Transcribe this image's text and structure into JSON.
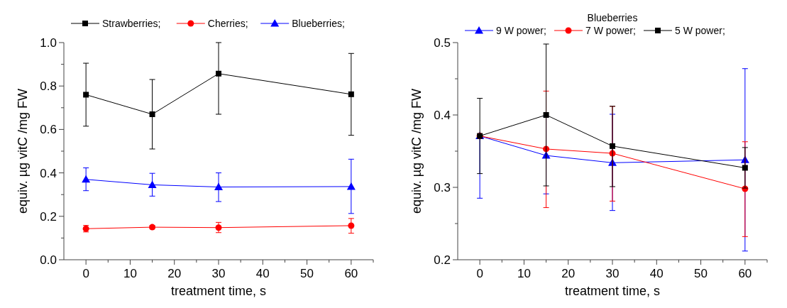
{
  "chart_data": [
    {
      "type": "line",
      "xlabel": "treatment time, s",
      "ylabel": "equiv. µg vitC /mg FW",
      "x": [
        0,
        15,
        30,
        60
      ],
      "xlim": [
        -5,
        65
      ],
      "xticks": [
        0,
        {
          "value": 5,
          "label": null
        },
        10,
        {
          "value": 15,
          "label": null
        },
        20,
        {
          "value": 25,
          "label": null
        },
        30,
        {
          "value": 35,
          "label": null
        },
        40,
        {
          "value": 45,
          "label": null
        },
        50,
        {
          "value": 55,
          "label": null
        },
        60,
        {
          "value": 65,
          "label": null
        }
      ],
      "ylim": [
        0,
        1.0
      ],
      "yticks": [
        {
          "value": 0,
          "label": "0.0"
        },
        {
          "value": 0.1,
          "label": null
        },
        0.2,
        {
          "value": 0.3,
          "label": null
        },
        0.4,
        {
          "value": 0.5,
          "label": null
        },
        0.6,
        {
          "value": 0.7,
          "label": null
        },
        0.8,
        {
          "value": 0.9,
          "label": null
        },
        {
          "value": 1.0,
          "label": "1.0"
        }
      ],
      "legend": "top",
      "grid": false,
      "line_style": "solid",
      "series": [
        {
          "name": "Strawberries;",
          "color": "#000000",
          "marker": "square",
          "values": [
            0.76,
            0.67,
            0.857,
            0.762
          ],
          "errors": [
            [
              0.615,
              0.905
            ],
            [
              0.51,
              0.83
            ],
            [
              0.67,
              1.0
            ],
            [
              0.573,
              0.95
            ]
          ]
        },
        {
          "name": "Cherries;",
          "color": "#ff0000",
          "marker": "circle",
          "values": [
            0.143,
            0.15,
            0.148,
            0.157
          ],
          "errors": [
            [
              0.128,
              0.158
            ],
            [
              0.143,
              0.158
            ],
            [
              0.125,
              0.172
            ],
            [
              0.122,
              0.19
            ]
          ]
        },
        {
          "name": "Blueberries;",
          "color": "#0000ff",
          "marker": "triangle",
          "values": [
            0.37,
            0.345,
            0.335,
            0.337
          ],
          "errors": [
            [
              0.318,
              0.423
            ],
            [
              0.293,
              0.398
            ],
            [
              0.268,
              0.4
            ],
            [
              0.213,
              0.463
            ]
          ]
        }
      ]
    },
    {
      "type": "line",
      "legend_title": "Blueberries",
      "xlabel": "treatment time, s",
      "ylabel": "equiv. µg vitC /mg FW",
      "x": [
        0,
        15,
        30,
        60
      ],
      "xlim": [
        -5,
        65
      ],
      "xticks": [
        0,
        {
          "value": 5,
          "label": null
        },
        10,
        {
          "value": 15,
          "label": null
        },
        20,
        {
          "value": 25,
          "label": null
        },
        30,
        {
          "value": 35,
          "label": null
        },
        40,
        {
          "value": 45,
          "label": null
        },
        50,
        {
          "value": 55,
          "label": null
        },
        60,
        {
          "value": 65,
          "label": null
        }
      ],
      "ylim": [
        0.2,
        0.5
      ],
      "yticks": [
        0.2,
        {
          "value": 0.25,
          "label": null
        },
        0.3,
        {
          "value": 0.35,
          "label": null
        },
        0.4,
        {
          "value": 0.45,
          "label": null
        },
        0.5
      ],
      "legend": "top",
      "grid": false,
      "line_style": "solid",
      "series": [
        {
          "name": "9 W power;",
          "color": "#0000ff",
          "marker": "triangle",
          "values": [
            0.371,
            0.344,
            0.334,
            0.338
          ],
          "errors": [
            [
              0.285,
              0.371
            ],
            [
              0.291,
              0.398
            ],
            [
              0.268,
              0.401
            ],
            [
              0.212,
              0.464
            ]
          ]
        },
        {
          "name": "7 W power;",
          "color": "#ff0000",
          "marker": "circle",
          "values": [
            0.371,
            0.353,
            0.347,
            0.298
          ],
          "errors": [
            null,
            [
              0.272,
              0.433
            ],
            [
              0.281,
              0.412
            ],
            [
              0.232,
              0.363
            ]
          ]
        },
        {
          "name": "5 W power;",
          "color": "#000000",
          "marker": "square",
          "values": [
            0.371,
            0.4,
            0.357,
            0.327
          ],
          "errors": [
            [
              0.319,
              0.423
            ],
            [
              0.302,
              0.498
            ],
            [
              0.301,
              0.412
            ],
            [
              0.299,
              0.355
            ]
          ]
        }
      ]
    }
  ]
}
